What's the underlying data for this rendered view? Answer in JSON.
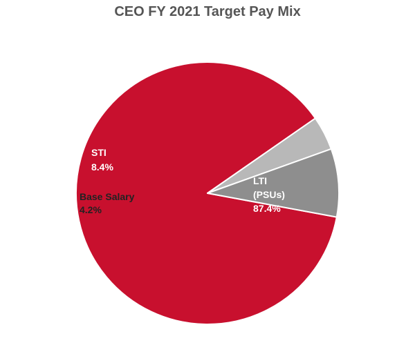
{
  "chart_data": {
    "type": "pie",
    "title": "CEO FY 2021 Target Pay Mix",
    "slices": [
      {
        "name": "LTI (PSUs)",
        "value": 87.4,
        "label_lines": [
          "LTI",
          "(PSUs)",
          "87.4%"
        ],
        "color": "#c8102e",
        "label_color": "#ffffff"
      },
      {
        "name": "Base Salary",
        "value": 4.2,
        "label_lines": [
          "Base Salary",
          "4.2%"
        ],
        "color": "#b8b8b8",
        "label_color": "#222222"
      },
      {
        "name": "STI",
        "value": 8.4,
        "label_lines": [
          "STI",
          "8.4%"
        ],
        "color": "#8e8e8e",
        "label_color": "#ffffff"
      }
    ]
  }
}
